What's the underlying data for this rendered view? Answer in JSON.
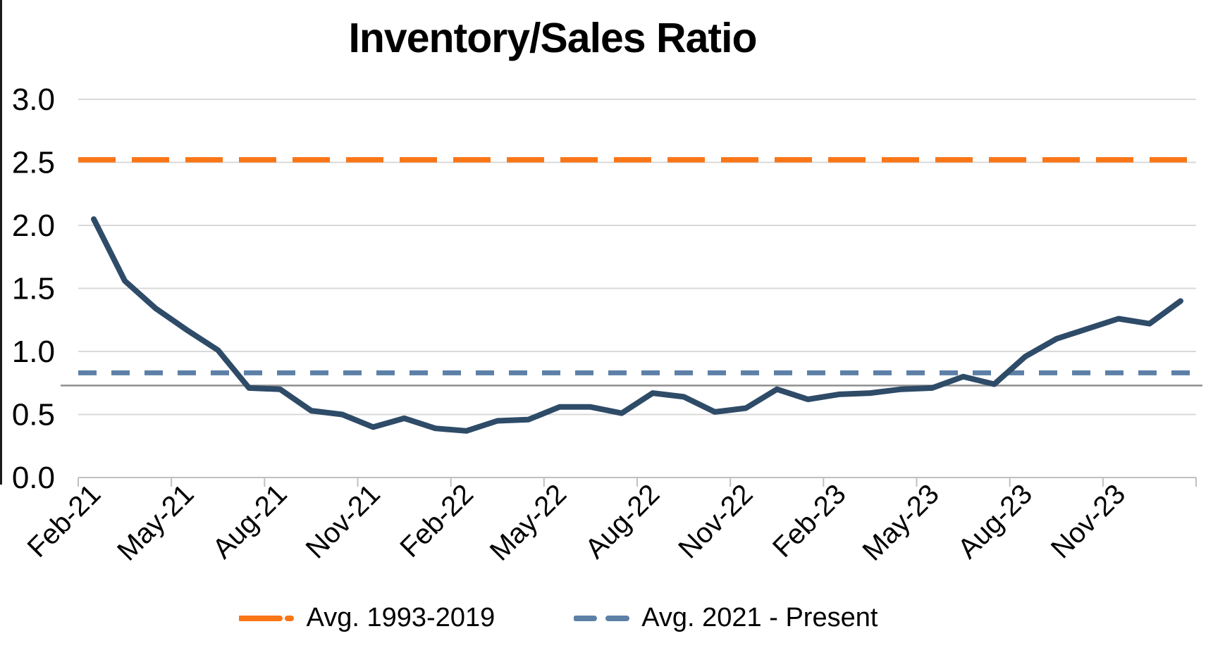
{
  "title": "Inventory/Sales Ratio",
  "chart_data": {
    "type": "line",
    "x": [
      "Feb-21",
      "Mar-21",
      "Apr-21",
      "May-21",
      "Jun-21",
      "Jul-21",
      "Aug-21",
      "Sep-21",
      "Oct-21",
      "Nov-21",
      "Dec-21",
      "Jan-22",
      "Feb-22",
      "Mar-22",
      "Apr-22",
      "May-22",
      "Jun-22",
      "Jul-22",
      "Aug-22",
      "Sep-22",
      "Oct-22",
      "Nov-22",
      "Dec-22",
      "Jan-23",
      "Feb-23",
      "Mar-23",
      "Apr-23",
      "May-23",
      "Jun-23",
      "Jul-23",
      "Aug-23",
      "Sep-23",
      "Oct-23",
      "Nov-23",
      "Dec-23",
      "Jan-24"
    ],
    "series": [
      {
        "name": "Inventory/Sales Ratio",
        "color": "#2e4b68",
        "values": [
          2.05,
          1.56,
          1.34,
          1.17,
          1.01,
          0.71,
          0.7,
          0.53,
          0.5,
          0.4,
          0.47,
          0.39,
          0.37,
          0.45,
          0.46,
          0.56,
          0.56,
          0.51,
          0.67,
          0.64,
          0.52,
          0.55,
          0.7,
          0.62,
          0.66,
          0.67,
          0.7,
          0.71,
          0.8,
          0.74,
          0.96,
          1.1,
          1.18,
          1.26,
          1.22,
          1.4
        ]
      }
    ],
    "reference_lines": [
      {
        "name": "Avg. 1993-2019",
        "value": 2.52,
        "color": "#f97516",
        "style": "long-dash"
      },
      {
        "name": "Avg. 2021 - Present",
        "value": 0.83,
        "color": "#5d80a7",
        "style": "dash"
      },
      {
        "name": "",
        "value": 0.73,
        "color": "#8f8f8f",
        "style": "solid"
      }
    ],
    "xtick_labels": [
      "Feb-21",
      "May-21",
      "Aug-21",
      "Nov-21",
      "Feb-22",
      "May-22",
      "Aug-22",
      "Nov-22",
      "Feb-23",
      "May-23",
      "Aug-23",
      "Nov-23"
    ],
    "yticks": [
      "3.0",
      "2.5",
      "2.0",
      "1.5",
      "1.0",
      "0.5",
      "0.0"
    ],
    "ylim": [
      0.0,
      3.0
    ],
    "ytick_step": 0.5,
    "grid": true,
    "legend_position": "bottom",
    "colors": {
      "gridline": "#d9d9d9",
      "axis": "#c0c0c0",
      "text": "#000000"
    }
  },
  "legend": {
    "items": [
      {
        "label": "Avg. 1993-2019",
        "color": "#f97516"
      },
      {
        "label": "Avg. 2021 - Present",
        "color": "#5d80a7"
      }
    ]
  }
}
